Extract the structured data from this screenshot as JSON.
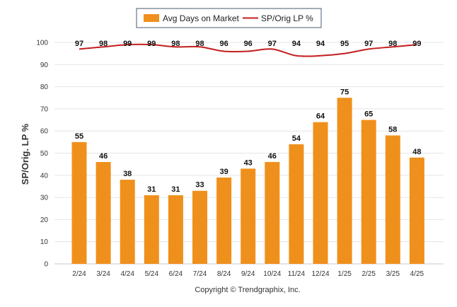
{
  "chart_data": {
    "type": "bar",
    "categories": [
      "2/24",
      "3/24",
      "4/24",
      "5/24",
      "6/24",
      "7/24",
      "8/24",
      "9/24",
      "10/24",
      "11/24",
      "12/24",
      "1/25",
      "2/25",
      "3/25",
      "4/25"
    ],
    "series": [
      {
        "name": "Avg Days on Market",
        "kind": "bar",
        "color": "#f0901c",
        "values": [
          55,
          46,
          38,
          31,
          31,
          33,
          39,
          43,
          46,
          54,
          64,
          75,
          65,
          58,
          48
        ]
      },
      {
        "name": "SP/Orig LP %",
        "kind": "line",
        "color": "#c41e1e",
        "values": [
          97,
          98,
          99,
          99,
          98,
          98,
          96,
          96,
          97,
          94,
          94,
          95,
          97,
          98,
          99
        ]
      }
    ],
    "ylabel": "SP/Orig. LP %",
    "xlabel": "",
    "ylim": [
      0,
      100
    ],
    "yticks": [
      0,
      10,
      20,
      30,
      40,
      50,
      60,
      70,
      80,
      90,
      100
    ],
    "grid": true,
    "legend": "top-center",
    "footer": "Copyright © Trendgraphix, Inc."
  }
}
